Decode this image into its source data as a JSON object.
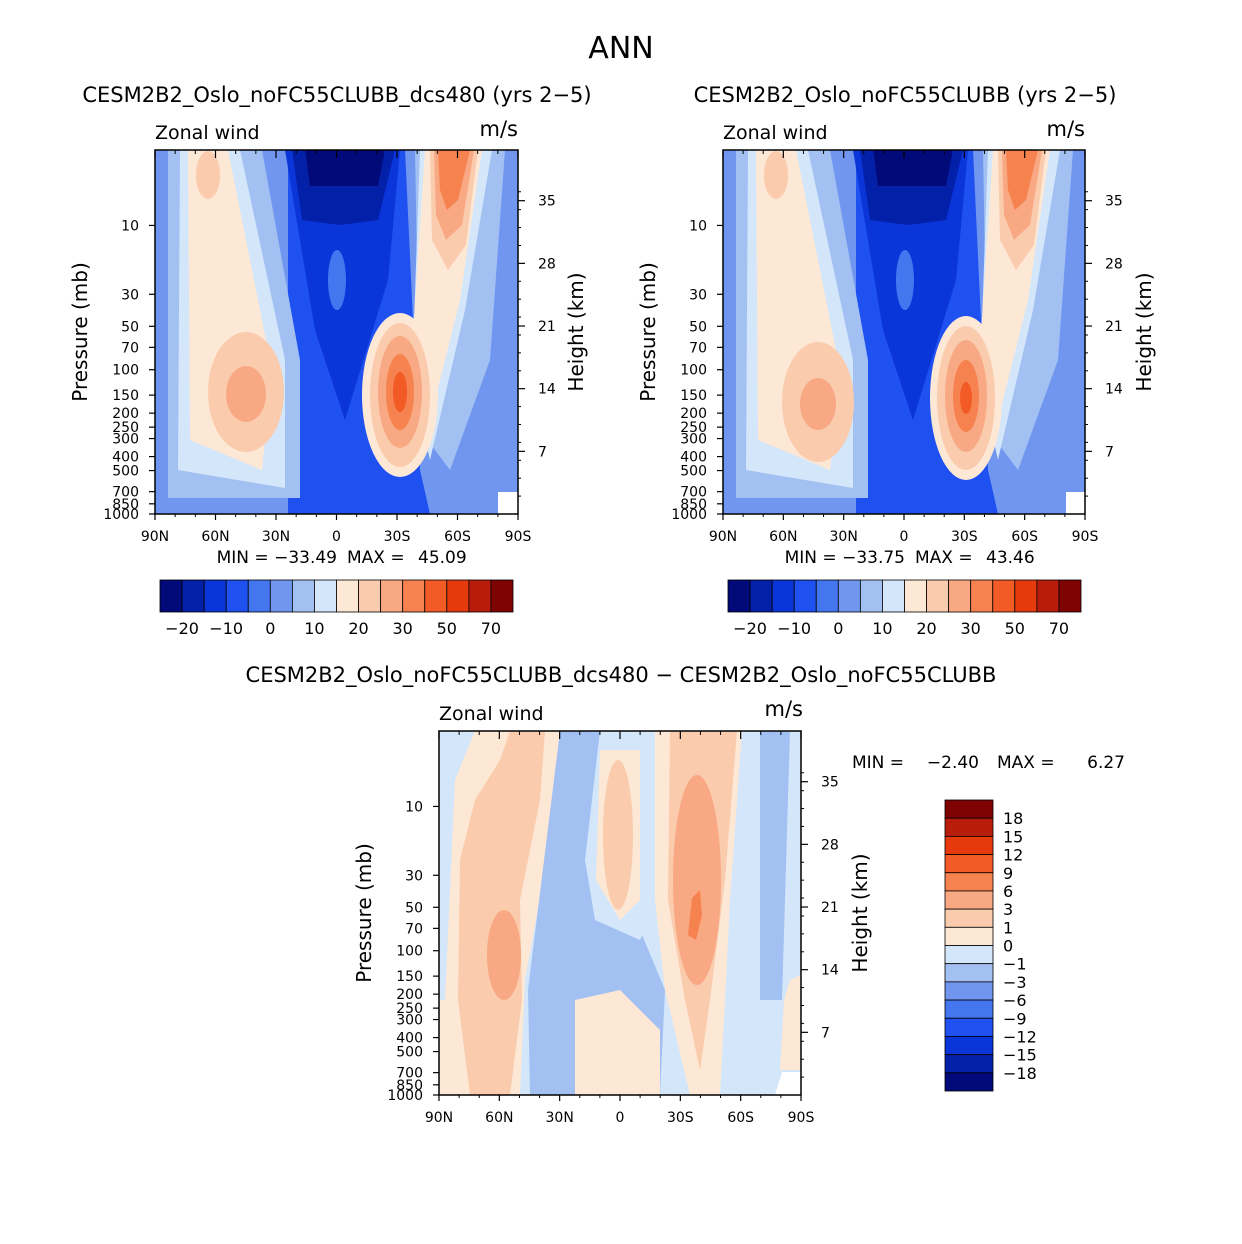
{
  "figure_title": "ANN",
  "chart_data": [
    {
      "type": "heatmap",
      "title": "CESM2B2_Oslo_noFC55CLUBB_dcs480 (yrs 2-5)",
      "left_label": "Zonal wind",
      "right_label": "m/s",
      "ylabel": "Pressure (mb)",
      "y2label": "Height (km)",
      "x_ticks": [
        "90N",
        "60N",
        "30N",
        "0",
        "30S",
        "60S",
        "90S"
      ],
      "x_values": [
        90,
        60,
        30,
        0,
        -30,
        -60,
        -90
      ],
      "p_ticks": [
        10,
        30,
        50,
        70,
        100,
        150,
        200,
        250,
        300,
        400,
        500,
        700,
        850,
        1000
      ],
      "h_ticks": [
        35,
        28,
        21,
        14,
        7
      ],
      "ylim": [
        1000,
        3
      ],
      "min_label": "MIN =",
      "min_value": "-33.49",
      "max_label": "MAX =",
      "max_value": "45.09",
      "features": [
        {
          "name": "tropical-easterly",
          "lat": 0,
          "p": 10,
          "value": -33.49
        },
        {
          "name": "nh-subtropical-jet",
          "lat": 45,
          "p": 180,
          "value": 25
        },
        {
          "name": "sh-subtropical-jet",
          "lat": -30,
          "p": 180,
          "value": 45.09
        },
        {
          "name": "sh-polar-night-jet",
          "lat": -62,
          "p": 10,
          "value": 40
        }
      ],
      "colorbar_labels": [
        "-20",
        "-10",
        "0",
        "10",
        "20",
        "30",
        "50",
        "70"
      ]
    },
    {
      "type": "heatmap",
      "title": "CESM2B2_Oslo_noFC55CLUBB (yrs 2-5)",
      "left_label": "Zonal wind",
      "right_label": "m/s",
      "ylabel": "Pressure (mb)",
      "y2label": "Height (km)",
      "x_ticks": [
        "90N",
        "60N",
        "30N",
        "0",
        "30S",
        "60S",
        "90S"
      ],
      "x_values": [
        90,
        60,
        30,
        0,
        -30,
        -60,
        -90
      ],
      "p_ticks": [
        10,
        30,
        50,
        70,
        100,
        150,
        200,
        250,
        300,
        400,
        500,
        700,
        850,
        1000
      ],
      "h_ticks": [
        35,
        28,
        21,
        14,
        7
      ],
      "ylim": [
        1000,
        3
      ],
      "min_label": "MIN =",
      "min_value": "-33.75",
      "max_label": "MAX =",
      "max_value": "43.46",
      "features": [
        {
          "name": "tropical-easterly",
          "lat": 0,
          "p": 10,
          "value": -33.75
        },
        {
          "name": "nh-subtropical-jet",
          "lat": 45,
          "p": 200,
          "value": 22
        },
        {
          "name": "sh-subtropical-jet",
          "lat": -30,
          "p": 200,
          "value": 43.46
        },
        {
          "name": "sh-polar-night-jet",
          "lat": -62,
          "p": 10,
          "value": 36
        }
      ],
      "colorbar_labels": [
        "-20",
        "-10",
        "0",
        "10",
        "20",
        "30",
        "50",
        "70"
      ]
    },
    {
      "type": "heatmap",
      "title": "CESM2B2_Oslo_noFC55CLUBB_dcs480 - CESM2B2_Oslo_noFC55CLUBB",
      "left_label": "Zonal wind",
      "right_label": "m/s",
      "ylabel": "Pressure (mb)",
      "y2label": "Height (km)",
      "x_ticks": [
        "90N",
        "60N",
        "30N",
        "0",
        "30S",
        "60S",
        "90S"
      ],
      "x_values": [
        90,
        60,
        30,
        0,
        -30,
        -60,
        -90
      ],
      "p_ticks": [
        10,
        30,
        50,
        70,
        100,
        150,
        200,
        250,
        300,
        400,
        500,
        700,
        850,
        1000
      ],
      "h_ticks": [
        35,
        28,
        21,
        14,
        7
      ],
      "ylim": [
        1000,
        3
      ],
      "min_label": "MIN =",
      "min_value": "-2.40",
      "max_label": "MAX =",
      "max_value": "6.27",
      "features": [
        {
          "name": "nh-positive-band",
          "lat": 60,
          "p": 100,
          "value": 3
        },
        {
          "name": "sh-positive-band",
          "lat": -40,
          "p": 70,
          "value": 6.27
        },
        {
          "name": "tropical-upper-positive",
          "lat": -5,
          "p": 20,
          "value": 3
        },
        {
          "name": "negative-band",
          "lat": 15,
          "p": 200,
          "value": -2.4
        }
      ],
      "colorbar_labels": [
        "18",
        "15",
        "12",
        "9",
        "6",
        "3",
        "1",
        "0",
        "-1",
        "-3",
        "-6",
        "-9",
        "-12",
        "-15",
        "-18"
      ]
    }
  ],
  "colors": {
    "scale": [
      "#020a7a",
      "#0320a8",
      "#0a35d8",
      "#1f50f0",
      "#4476f0",
      "#7096f0",
      "#a2c0f2",
      "#d4e6fa",
      "#fde8d6",
      "#fbcbae",
      "#f8a883",
      "#f5824f",
      "#f25a26",
      "#e63a0c",
      "#b81d0b",
      "#7f0303"
    ]
  }
}
